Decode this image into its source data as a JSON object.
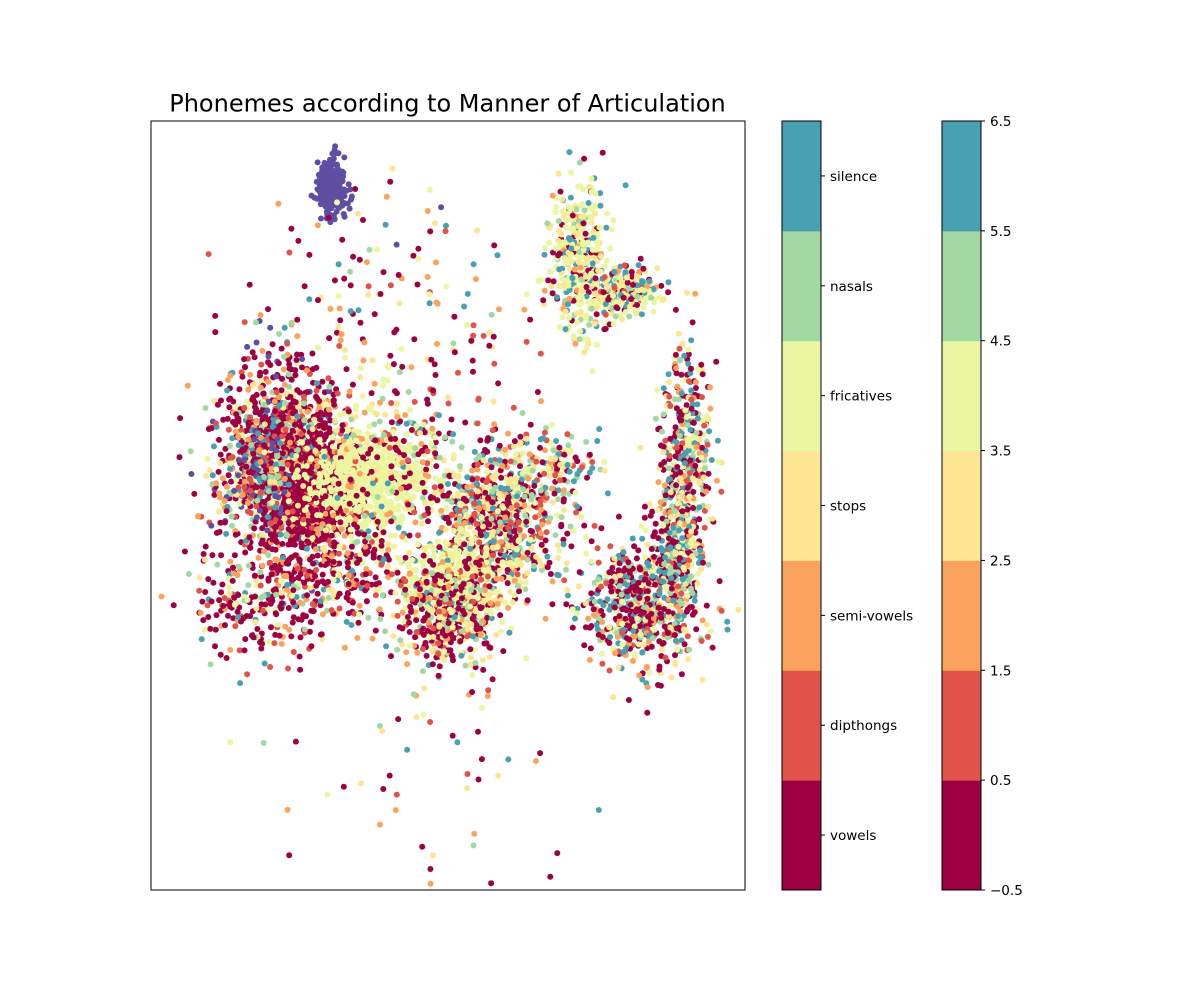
{
  "chart_data": {
    "type": "scatter",
    "title": "Phonemes according to Manner of Articulation",
    "xlabel": "",
    "ylabel": "",
    "grid": false,
    "axis_ticks": false,
    "legend": "colorbars-right",
    "classes": [
      {
        "value": 0,
        "name": "vowels",
        "color": "#9e0142"
      },
      {
        "value": 1,
        "name": "dipthongs",
        "color": "#e1524a"
      },
      {
        "value": 2,
        "name": "semi-vowels",
        "color": "#fba35e"
      },
      {
        "value": 3,
        "name": "stops",
        "color": "#fee593"
      },
      {
        "value": 4,
        "name": "fricatives",
        "color": "#ebf7a0"
      },
      {
        "value": 5,
        "name": "nasals",
        "color": "#a2d9a3"
      },
      {
        "value": 6,
        "name": "silence",
        "color": "#48a0b2"
      }
    ],
    "extra_color": "#5e4fa2",
    "colorbar_numeric": {
      "range": [
        -0.5,
        6.5
      ],
      "ticks": [
        -0.5,
        0.5,
        1.5,
        2.5,
        3.5,
        4.5,
        5.5,
        6.5
      ],
      "tick_labels": [
        "−0.5",
        "0.5",
        "1.5",
        "2.5",
        "3.5",
        "4.5",
        "5.5",
        "6.5"
      ]
    },
    "xlim": [
      0,
      100
    ],
    "ylim": [
      0,
      100
    ],
    "clusters": [
      {
        "x": 30.5,
        "y": 91.5,
        "sx": 1.2,
        "sy": 1.8,
        "n": 260,
        "mix": [
          0,
          0,
          0,
          0,
          0,
          0,
          0,
          1
        ]
      },
      {
        "x": 22,
        "y": 56,
        "sx": 5.5,
        "sy": 6.5,
        "n": 1300,
        "mix": [
          0.45,
          0.1,
          0.12,
          0.06,
          0.08,
          0.07,
          0.06,
          0.06
        ]
      },
      {
        "x": 27,
        "y": 51,
        "sx": 5,
        "sy": 4,
        "n": 500,
        "mix": [
          0.85,
          0.05,
          0.05,
          0.02,
          0.01,
          0.01,
          0.01,
          0
        ]
      },
      {
        "x": 19,
        "y": 55,
        "sx": 2,
        "sy": 3,
        "n": 250,
        "mix": [
          0.2,
          0.1,
          0.15,
          0.05,
          0.1,
          0.1,
          0.15,
          0.15
        ]
      },
      {
        "x": 37,
        "y": 53,
        "sx": 5,
        "sy": 3,
        "n": 700,
        "mix": [
          0.01,
          0,
          0.01,
          0.08,
          0.9,
          0,
          0,
          0
        ]
      },
      {
        "x": 58,
        "y": 48,
        "sx": 5.5,
        "sy": 4.5,
        "n": 800,
        "mix": [
          0.3,
          0.1,
          0.1,
          0.15,
          0.1,
          0.1,
          0.15,
          0
        ]
      },
      {
        "x": 51,
        "y": 40,
        "sx": 4,
        "sy": 3,
        "n": 350,
        "mix": [
          0.02,
          0,
          0.02,
          0.15,
          0.81,
          0,
          0,
          0
        ]
      },
      {
        "x": 50,
        "y": 36,
        "sx": 4,
        "sy": 3.5,
        "n": 500,
        "mix": [
          0.4,
          0.1,
          0.1,
          0.1,
          0.15,
          0.1,
          0.05,
          0
        ]
      },
      {
        "x": 83,
        "y": 37,
        "sx": 5,
        "sy": 4,
        "n": 600,
        "mix": [
          0.35,
          0.1,
          0.1,
          0.1,
          0.1,
          0.1,
          0.15,
          0
        ]
      },
      {
        "x": 72,
        "y": 82,
        "sx": 2.5,
        "sy": 5,
        "n": 400,
        "mix": [
          0.1,
          0,
          0.05,
          0.2,
          0.45,
          0.05,
          0.15,
          0
        ]
      },
      {
        "x": 80,
        "y": 78,
        "sx": 3,
        "sy": 1.5,
        "n": 250,
        "mix": [
          0.15,
          0.05,
          0.05,
          0.2,
          0.25,
          0.1,
          0.2,
          0
        ]
      },
      {
        "x": 90,
        "y": 55,
        "sx": 2,
        "sy": 8,
        "n": 450,
        "mix": [
          0.3,
          0.1,
          0.1,
          0.1,
          0.1,
          0.1,
          0.2,
          0
        ]
      },
      {
        "x": 88,
        "y": 43,
        "sx": 1.8,
        "sy": 4,
        "n": 200,
        "mix": [
          0.3,
          0.05,
          0.05,
          0.1,
          0.1,
          0.15,
          0.25,
          0
        ]
      },
      {
        "x": 67,
        "y": 56,
        "sx": 5,
        "sy": 2,
        "n": 120,
        "mix": [
          0.2,
          0.1,
          0.1,
          0.2,
          0.2,
          0.1,
          0.1,
          0
        ]
      },
      {
        "x": 40,
        "y": 58,
        "sx": 6,
        "sy": 4,
        "n": 150,
        "mix": [
          0.25,
          0.1,
          0.1,
          0.15,
          0.2,
          0.1,
          0.1,
          0
        ]
      },
      {
        "x": 20,
        "y": 38,
        "sx": 6,
        "sy": 4,
        "n": 250,
        "mix": [
          0.5,
          0.1,
          0.15,
          0.05,
          0.1,
          0.05,
          0.05,
          0
        ]
      },
      {
        "x": 33,
        "y": 42,
        "sx": 4,
        "sy": 4,
        "n": 200,
        "mix": [
          0.5,
          0.1,
          0.15,
          0.05,
          0.1,
          0.05,
          0.05,
          0
        ]
      },
      {
        "x": 47,
        "y": 62,
        "sx": 10,
        "sy": 13,
        "n": 180,
        "mix": [
          0.3,
          0.15,
          0.15,
          0.1,
          0.1,
          0.1,
          0.1,
          0
        ]
      },
      {
        "x": 48,
        "y": 18,
        "sx": 14,
        "sy": 9,
        "n": 45,
        "mix": [
          0.35,
          0.1,
          0.2,
          0.1,
          0.1,
          0.1,
          0.05,
          0
        ]
      },
      {
        "x": 33,
        "y": 78,
        "sx": 10,
        "sy": 7,
        "n": 60,
        "mix": [
          0.35,
          0.1,
          0.2,
          0.1,
          0.1,
          0.05,
          0.05,
          0.05
        ]
      }
    ],
    "isolated_points": [
      {
        "x": 4.8,
        "y": 56.3,
        "c": 0
      },
      {
        "x": 47.5,
        "y": 4.5,
        "c": 3
      },
      {
        "x": 54.3,
        "y": 5.8,
        "c": 5
      },
      {
        "x": 68.4,
        "y": 4.8,
        "c": 0
      },
      {
        "x": 24.4,
        "y": 19.3,
        "c": 0
      },
      {
        "x": 65.5,
        "y": 17.8,
        "c": 0
      },
      {
        "x": 23.3,
        "y": 82.9,
        "c": 1
      },
      {
        "x": 39.5,
        "y": 86.5,
        "c": 6
      },
      {
        "x": 46.6,
        "y": 88.3,
        "c": 2
      },
      {
        "x": 14,
        "y": 38,
        "c": 0
      }
    ]
  }
}
